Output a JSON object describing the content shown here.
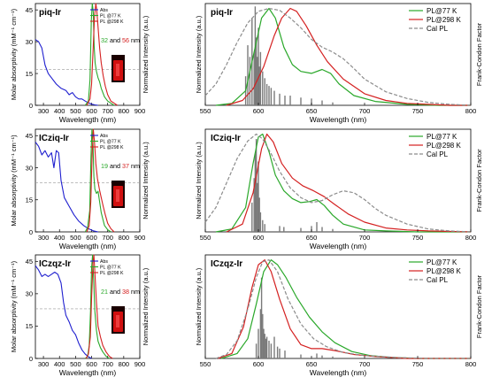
{
  "colors": {
    "abs": "#1f1fcf",
    "pl77": "#2aa82a",
    "pl298": "#d42020",
    "cal": "#8c8c8c",
    "fc": "#7a7a7a",
    "glow": "#d10f0f",
    "vial": "#1a0000"
  },
  "panels_text": {
    "left_ylabel": "Molar absorptivity (mM⁻¹ cm⁻¹)",
    "left_ylabel2": "Normalized Intensity (a.u.)",
    "left_xlabel": "Wavelength (nm)",
    "right_ylabel": "Normalized Intensity (a.u.)",
    "right_ylabel2": "Frank-Condon Factor",
    "right_xlabel": "Wavelength (nm)"
  },
  "chart_data": [
    {
      "type": "line",
      "title": "piq-Ir",
      "xlabel": "Wavelength (nm)",
      "ylabel": "Molar absorptivity (mM⁻¹ cm⁻¹)",
      "ylabel2": "Normalized Intensity (a.u.)",
      "xlim": [
        250,
        900
      ],
      "ylim": [
        0,
        48
      ],
      "xticks": [
        300,
        400,
        500,
        600,
        700,
        800,
        900
      ],
      "yticks": [
        0,
        15,
        30,
        45
      ],
      "legend": [
        "Abs",
        "PL @77 K",
        "PL @298 K"
      ],
      "annotation": {
        "a": "32",
        "and": "and",
        "b": "56",
        "unit": "nm"
      },
      "dashed_ref": 17,
      "series": [
        {
          "name": "Abs",
          "x": [
            250,
            270,
            290,
            310,
            330,
            350,
            380,
            410,
            440,
            460,
            480,
            500,
            520,
            540,
            560,
            580,
            600,
            620,
            640
          ],
          "y": [
            31,
            30,
            27,
            19,
            15,
            13,
            10,
            8,
            7,
            5,
            6,
            4,
            3,
            3,
            2,
            1.2,
            0.6,
            0.2,
            0
          ]
        },
        {
          "name": "PL @77 K",
          "x": [
            560,
            580,
            590,
            598,
            604,
            610,
            616,
            622,
            630,
            640,
            650,
            660,
            670,
            680,
            700,
            720,
            740
          ],
          "y": [
            0,
            2,
            12,
            40,
            48,
            44,
            28,
            20,
            16,
            13,
            11,
            8,
            6,
            4,
            2,
            1,
            0
          ]
        },
        {
          "name": "PL @298 K",
          "x": [
            570,
            590,
            600,
            610,
            618,
            626,
            632,
            640,
            650,
            660,
            672,
            685,
            700,
            720,
            740,
            760
          ],
          "y": [
            0,
            3,
            10,
            28,
            42,
            48,
            45,
            37,
            27,
            20,
            14,
            9,
            5,
            2,
            1,
            0
          ]
        }
      ]
    },
    {
      "type": "line",
      "title": "ICziq-Ir",
      "xlabel": "Wavelength (nm)",
      "ylabel": "Molar absorptivity (mM⁻¹ cm⁻¹)",
      "ylabel2": "Normalized Intensity (a.u.)",
      "xlim": [
        250,
        900
      ],
      "ylim": [
        0,
        48
      ],
      "xticks": [
        300,
        400,
        500,
        600,
        700,
        800,
        900
      ],
      "yticks": [
        0,
        15,
        30,
        45
      ],
      "legend": [
        "Abs",
        "PL @77 K",
        "PL @298 K"
      ],
      "annotation": {
        "a": "19",
        "and": "and",
        "b": "37",
        "unit": "nm"
      },
      "dashed_ref": 23,
      "series": [
        {
          "name": "Abs",
          "x": [
            250,
            270,
            290,
            310,
            330,
            350,
            365,
            380,
            395,
            410,
            430,
            460,
            490,
            520,
            550,
            580,
            610,
            640
          ],
          "y": [
            42,
            40,
            36,
            38,
            35,
            37,
            30,
            38,
            37,
            24,
            16,
            12,
            8,
            5,
            3,
            1.5,
            0.5,
            0
          ]
        },
        {
          "name": "PL @77 K",
          "x": [
            560,
            575,
            588,
            596,
            602,
            608,
            614,
            620,
            630,
            640,
            650,
            660,
            670,
            680,
            700,
            720
          ],
          "y": [
            0,
            2,
            10,
            35,
            48,
            42,
            26,
            20,
            18,
            19,
            14,
            9,
            6,
            3,
            1,
            0
          ]
        },
        {
          "name": "PL @298 K",
          "x": [
            570,
            585,
            595,
            603,
            610,
            618,
            626,
            636,
            648,
            660,
            672,
            685,
            700,
            720,
            740
          ],
          "y": [
            0,
            3,
            14,
            36,
            48,
            42,
            32,
            25,
            20,
            16,
            12,
            8,
            4,
            1.5,
            0
          ]
        }
      ]
    },
    {
      "type": "line",
      "title": "ICzqz-Ir",
      "xlabel": "Wavelength (nm)",
      "ylabel": "Molar absorptivity (mM⁻¹ cm⁻¹)",
      "ylabel2": "Normalized Intensity (a.u.)",
      "xlim": [
        250,
        900
      ],
      "ylim": [
        0,
        48
      ],
      "xticks": [
        300,
        400,
        500,
        600,
        700,
        800,
        900
      ],
      "yticks": [
        0,
        15,
        30,
        45
      ],
      "legend": [
        "Abs",
        "PL @77 K",
        "PL @298 K"
      ],
      "annotation": {
        "a": "21",
        "and": "and",
        "b": "38",
        "unit": "nm"
      },
      "dashed_ref": 23,
      "series": [
        {
          "name": "Abs",
          "x": [
            250,
            270,
            290,
            310,
            330,
            350,
            370,
            390,
            410,
            425,
            440,
            460,
            480,
            500,
            520,
            540,
            560,
            580,
            600
          ],
          "y": [
            43,
            41,
            38,
            39,
            38,
            39,
            40,
            39,
            35,
            26,
            20,
            17,
            13,
            11,
            7,
            4,
            2,
            0.8,
            0
          ]
        },
        {
          "name": "PL @77 K",
          "x": [
            560,
            575,
            585,
            593,
            600,
            606,
            612,
            620,
            630,
            640,
            655,
            670,
            690,
            710
          ],
          "y": [
            0,
            1,
            6,
            22,
            42,
            48,
            38,
            22,
            13,
            8,
            5,
            3,
            1,
            0
          ]
        },
        {
          "name": "PL @298 K",
          "x": [
            565,
            580,
            592,
            600,
            608,
            614,
            620,
            630,
            640,
            655,
            670,
            690,
            710,
            730
          ],
          "y": [
            0,
            2,
            10,
            28,
            44,
            48,
            40,
            26,
            15,
            10,
            6,
            3,
            1,
            0
          ]
        }
      ]
    },
    {
      "type": "line",
      "title": "piq-Ir",
      "xlabel": "Wavelength (nm)",
      "ylabel": "Normalized Intensity (a.u.)",
      "ylabel2": "Frank-Condon Factor",
      "xlim": [
        550,
        800
      ],
      "ylim": [
        0,
        1.05
      ],
      "xticks": [
        550,
        600,
        650,
        700,
        750,
        800
      ],
      "legend": [
        "PL@77 K",
        "PL@298 K",
        "Cal PL"
      ],
      "series": [
        {
          "name": "PL@77 K",
          "x": [
            560,
            575,
            588,
            596,
            603,
            610,
            616,
            624,
            632,
            640,
            650,
            660,
            668,
            676,
            690,
            710,
            740,
            770,
            800
          ],
          "y": [
            0,
            0.02,
            0.15,
            0.55,
            0.9,
            1.0,
            0.9,
            0.6,
            0.42,
            0.35,
            0.33,
            0.37,
            0.33,
            0.22,
            0.1,
            0.04,
            0.01,
            0,
            0
          ]
        },
        {
          "name": "PL@298 K",
          "x": [
            570,
            585,
            595,
            605,
            615,
            622,
            630,
            636,
            645,
            655,
            665,
            680,
            700,
            720,
            740,
            760,
            780,
            800
          ],
          "y": [
            0,
            0.05,
            0.17,
            0.4,
            0.72,
            0.9,
            1.0,
            0.97,
            0.82,
            0.62,
            0.45,
            0.27,
            0.12,
            0.05,
            0.02,
            0.01,
            0,
            0
          ]
        },
        {
          "name": "Cal PL",
          "x": [
            550,
            560,
            570,
            580,
            590,
            600,
            610,
            620,
            630,
            640,
            650,
            660,
            670,
            680,
            690,
            700,
            720,
            740,
            760,
            780,
            800
          ],
          "y": [
            0.1,
            0.22,
            0.42,
            0.65,
            0.85,
            0.97,
            1.0,
            0.98,
            0.9,
            0.8,
            0.68,
            0.6,
            0.55,
            0.48,
            0.38,
            0.27,
            0.14,
            0.07,
            0.03,
            0.01,
            0
          ]
        }
      ],
      "fc_sticks": {
        "x": [
          588,
          590,
          592,
          594,
          596,
          597,
          598,
          599,
          600,
          601,
          602,
          604,
          606,
          608,
          610,
          612,
          615,
          620,
          625,
          630,
          640,
          650,
          660,
          670
        ],
        "y": [
          0.3,
          0.62,
          0.5,
          0.9,
          0.55,
          1.02,
          0.7,
          0.5,
          0.8,
          0.4,
          0.55,
          0.35,
          0.28,
          0.22,
          0.2,
          0.18,
          0.15,
          0.12,
          0.1,
          0.1,
          0.08,
          0.07,
          0.05,
          0.03
        ]
      }
    },
    {
      "type": "line",
      "title": "ICziq-Ir",
      "xlabel": "Wavelength (nm)",
      "ylabel": "Normalized Intensity (a.u.)",
      "ylabel2": "Frank-Condon Factor",
      "xlim": [
        550,
        800
      ],
      "ylim": [
        0,
        1.05
      ],
      "xticks": [
        550,
        600,
        650,
        700,
        750,
        800
      ],
      "legend": [
        "PL@77 K",
        "PL@298 K",
        "Cal PL"
      ],
      "series": [
        {
          "name": "PL@77 K",
          "x": [
            560,
            575,
            588,
            595,
            600,
            604,
            610,
            616,
            624,
            632,
            640,
            648,
            655,
            662,
            670,
            680,
            700,
            720,
            750,
            800
          ],
          "y": [
            0,
            0.03,
            0.25,
            0.7,
            0.97,
            1.0,
            0.82,
            0.58,
            0.42,
            0.34,
            0.3,
            0.31,
            0.33,
            0.27,
            0.17,
            0.08,
            0.02,
            0.01,
            0,
            0
          ]
        },
        {
          "name": "PL@298 K",
          "x": [
            570,
            585,
            595,
            603,
            608,
            614,
            622,
            632,
            642,
            652,
            662,
            672,
            685,
            700,
            720,
            740,
            760,
            800
          ],
          "y": [
            0,
            0.08,
            0.4,
            0.85,
            1.0,
            0.92,
            0.7,
            0.55,
            0.47,
            0.42,
            0.36,
            0.28,
            0.18,
            0.1,
            0.04,
            0.02,
            0.01,
            0
          ]
        },
        {
          "name": "Cal PL",
          "x": [
            550,
            560,
            570,
            580,
            590,
            598,
            604,
            612,
            620,
            630,
            640,
            650,
            660,
            670,
            680,
            690,
            700,
            710,
            720,
            740,
            760,
            780,
            800
          ],
          "y": [
            0.1,
            0.25,
            0.5,
            0.75,
            0.93,
            1.0,
            0.95,
            0.8,
            0.62,
            0.45,
            0.35,
            0.3,
            0.32,
            0.38,
            0.42,
            0.4,
            0.33,
            0.24,
            0.17,
            0.08,
            0.03,
            0.01,
            0
          ]
        }
      ],
      "fc_sticks": {
        "x": [
          594,
          596,
          597,
          598,
          599,
          600,
          601,
          602,
          604,
          606,
          620,
          624,
          640,
          650,
          655,
          660,
          670
        ],
        "y": [
          0.3,
          0.55,
          0.8,
          0.95,
          0.5,
          0.72,
          0.35,
          0.2,
          0.12,
          0.08,
          0.06,
          0.05,
          0.04,
          0.06,
          0.1,
          0.05,
          0.03
        ]
      }
    },
    {
      "type": "line",
      "title": "ICzqz-Ir",
      "xlabel": "Wavelength (nm)",
      "ylabel": "Normalized Intensity (a.u.)",
      "ylabel2": "Frank-Condon Factor",
      "xlim": [
        550,
        800
      ],
      "ylim": [
        0,
        1.05
      ],
      "xticks": [
        550,
        600,
        650,
        700,
        750,
        800
      ],
      "legend": [
        "PL@77 K",
        "PL@298 K",
        "Cal PL"
      ],
      "series": [
        {
          "name": "PL@77 K",
          "x": [
            565,
            580,
            590,
            598,
            605,
            612,
            618,
            626,
            636,
            648,
            660,
            672,
            688,
            705,
            725,
            750,
            800
          ],
          "y": [
            0,
            0.05,
            0.2,
            0.55,
            0.88,
            1.0,
            0.95,
            0.82,
            0.62,
            0.42,
            0.27,
            0.16,
            0.07,
            0.03,
            0.01,
            0,
            0
          ]
        },
        {
          "name": "PL@298 K",
          "x": [
            562,
            575,
            586,
            594,
            600,
            606,
            612,
            620,
            630,
            640,
            650,
            660,
            672,
            690,
            710,
            740,
            800
          ],
          "y": [
            0,
            0.05,
            0.32,
            0.72,
            0.95,
            1.0,
            0.88,
            0.6,
            0.3,
            0.14,
            0.1,
            0.1,
            0.08,
            0.04,
            0.02,
            0,
            0
          ]
        },
        {
          "name": "Cal PL",
          "x": [
            560,
            570,
            580,
            590,
            598,
            604,
            610,
            618,
            628,
            640,
            652,
            664,
            680,
            700,
            730,
            760,
            800
          ],
          "y": [
            0,
            0.04,
            0.18,
            0.5,
            0.82,
            0.98,
            1.0,
            0.88,
            0.6,
            0.35,
            0.2,
            0.12,
            0.06,
            0.03,
            0.01,
            0,
            0
          ]
        }
      ],
      "fc_sticks": {
        "x": [
          598,
          600,
          602,
          603,
          604,
          605,
          606,
          607,
          608,
          610,
          612,
          615,
          618,
          620,
          625,
          640,
          655,
          660,
          670
        ],
        "y": [
          0.15,
          0.3,
          0.5,
          0.82,
          0.45,
          0.3,
          0.25,
          0.2,
          0.22,
          0.18,
          0.15,
          0.22,
          0.12,
          0.1,
          0.08,
          0.04,
          0.05,
          0.03,
          0.02
        ]
      }
    }
  ]
}
